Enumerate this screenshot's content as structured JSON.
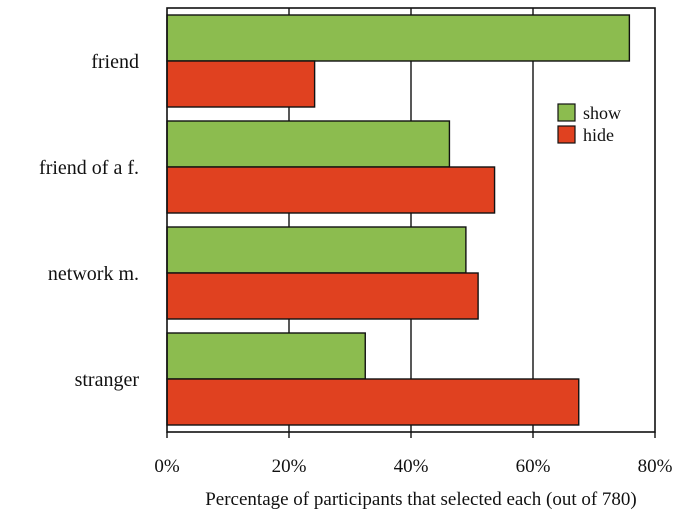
{
  "chart_data": {
    "type": "bar",
    "orientation": "horizontal",
    "categories": [
      "friend",
      "friend of a f.",
      "network m.",
      "stranger"
    ],
    "series": [
      {
        "name": "show",
        "color": "#8cbc4f",
        "values": [
          75.8,
          46.3,
          49.0,
          32.5
        ]
      },
      {
        "name": "hide",
        "color": "#e04120",
        "values": [
          24.2,
          53.7,
          51.0,
          67.5
        ]
      }
    ],
    "xlabel": "Percentage of participants that selected each (out of 780)",
    "ylabel": "",
    "xlim": [
      0,
      80
    ],
    "xticks": [
      0,
      20,
      40,
      60,
      80
    ],
    "xtick_labels": [
      "0%",
      "20%",
      "40%",
      "60%",
      "80%"
    ],
    "grid": "vertical lines at 20%, 40%, 60%",
    "legend": {
      "position": "upper-right",
      "entries": [
        "show",
        "hide"
      ]
    }
  }
}
